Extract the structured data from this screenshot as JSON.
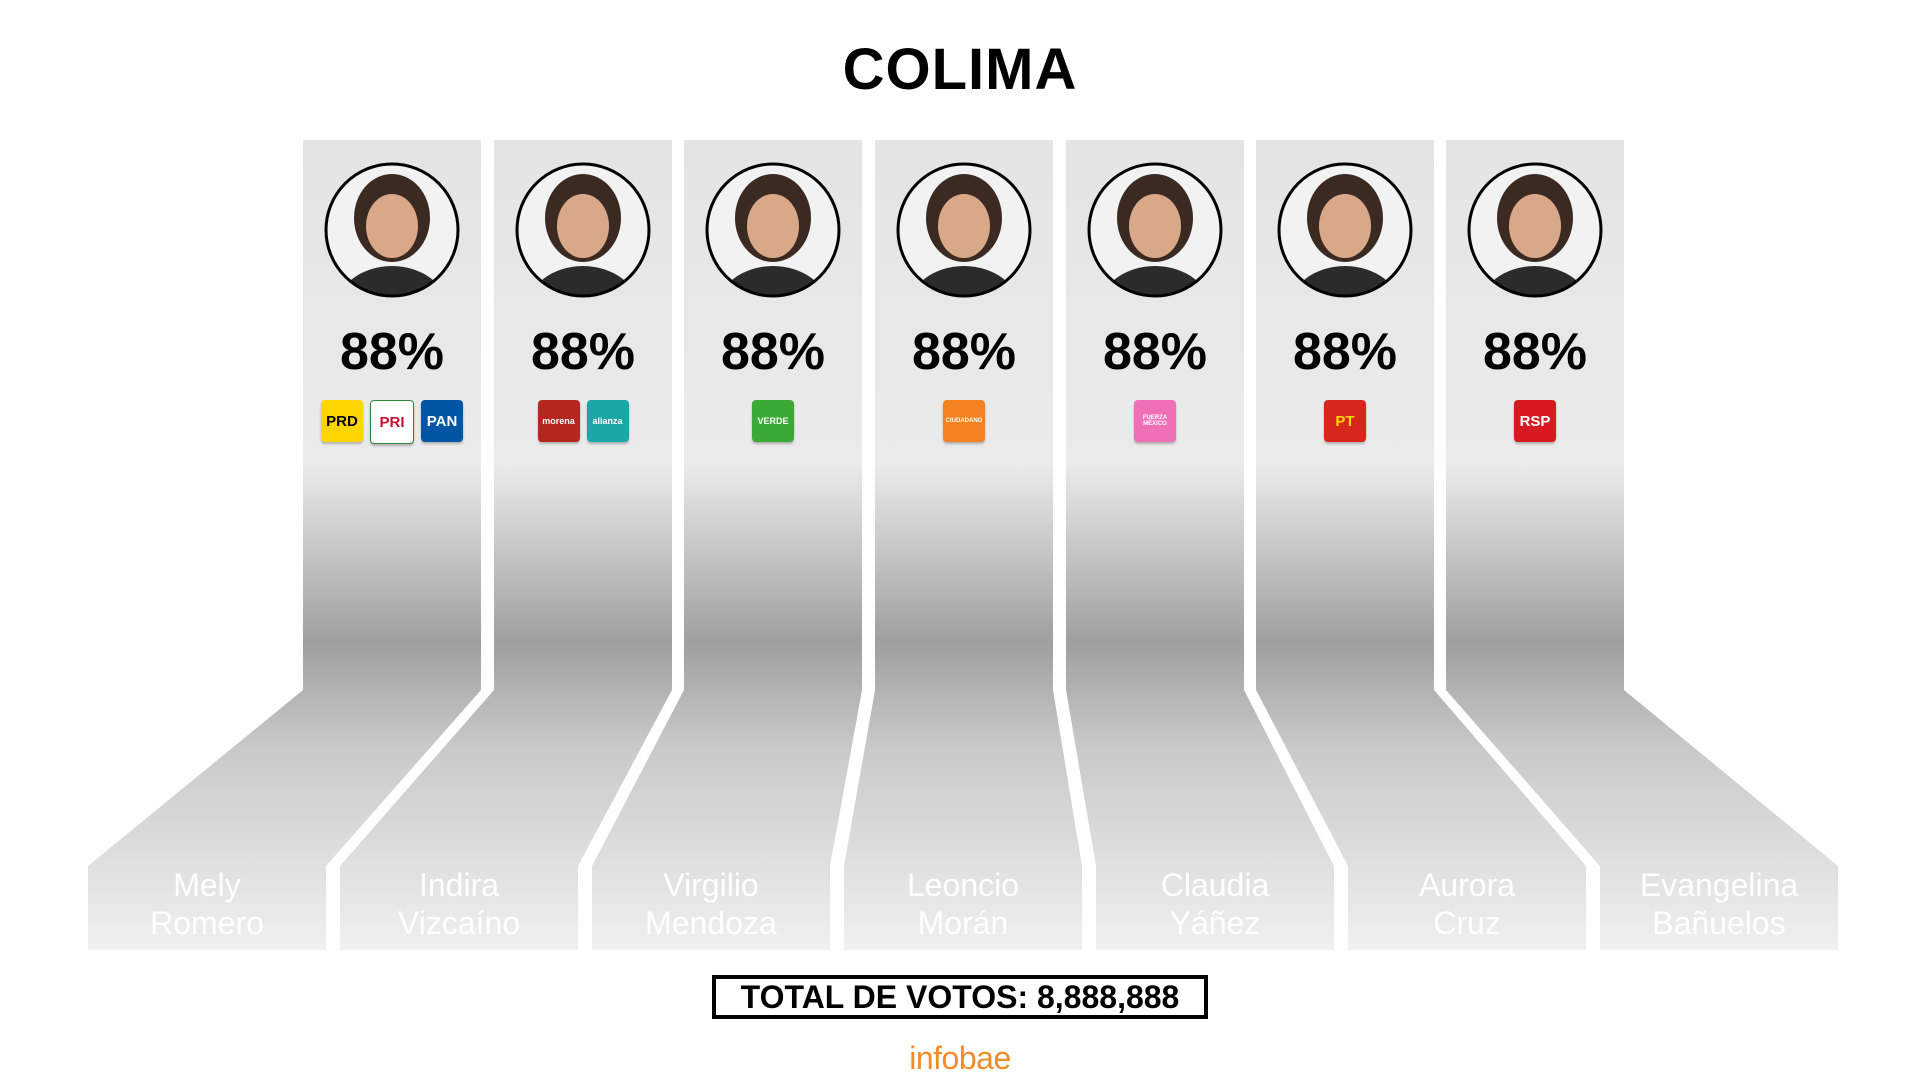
{
  "title": "COLIMA",
  "candidates": [
    {
      "name_line1": "Mely",
      "name_line2": "Romero",
      "percent": "88%",
      "parties": [
        {
          "label": "PRD",
          "icon": "prd-logo",
          "bg": "#ffd500",
          "fg": "#000000"
        },
        {
          "label": "PRI",
          "icon": "pri-logo",
          "bg": "#ffffff",
          "fg": "#c8102e"
        },
        {
          "label": "PAN",
          "icon": "pan-logo",
          "bg": "#0055a5",
          "fg": "#ffffff"
        }
      ]
    },
    {
      "name_line1": "Indira",
      "name_line2": "Vizcaíno",
      "percent": "88%",
      "parties": [
        {
          "label": "morena",
          "icon": "morena-logo",
          "bg": "#b5261e",
          "fg": "#ffffff"
        },
        {
          "label": "alianza",
          "icon": "nueva-alianza-logo",
          "bg": "#1ba7a5",
          "fg": "#ffffff"
        }
      ]
    },
    {
      "name_line1": "Virgilio",
      "name_line2": "Mendoza",
      "percent": "88%",
      "parties": [
        {
          "label": "VERDE",
          "icon": "verde-logo",
          "bg": "#3aa935",
          "fg": "#ffffff"
        }
      ]
    },
    {
      "name_line1": "Leoncio",
      "name_line2": "Morán",
      "percent": "88%",
      "parties": [
        {
          "label": "CIUDADANO",
          "icon": "movimiento-ciudadano-logo",
          "bg": "#f58220",
          "fg": "#ffffff"
        }
      ]
    },
    {
      "name_line1": "Claudia",
      "name_line2": "Yáñez",
      "percent": "88%",
      "parties": [
        {
          "label": "FUERZA MÉXICO",
          "icon": "fuerza-mexico-logo",
          "bg": "#f070b8",
          "fg": "#ffffff"
        }
      ]
    },
    {
      "name_line1": "Aurora",
      "name_line2": "Cruz",
      "percent": "88%",
      "parties": [
        {
          "label": "PT",
          "icon": "pt-logo",
          "bg": "#d9261c",
          "fg": "#ffd500"
        }
      ]
    },
    {
      "name_line1": "Evangelina",
      "name_line2": "Bañuelos",
      "percent": "88%",
      "parties": [
        {
          "label": "RSP",
          "icon": "rsp-logo",
          "bg": "#d71920",
          "fg": "#ffffff"
        }
      ]
    }
  ],
  "total_votes": "TOTAL DE VOTOS: 8,888,888",
  "brand": "infobae",
  "colors": {
    "brand": "#f28c28",
    "column_gray": "#d9d9d9"
  }
}
